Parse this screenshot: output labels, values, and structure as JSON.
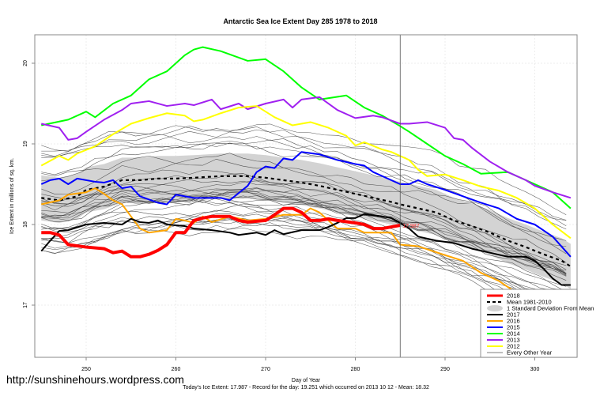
{
  "watermark": "http://sunshinehours.wordpress.com",
  "chart_data": {
    "type": "line",
    "title": "Antarctic Sea Ice Extent Day 285 1978 to 2018",
    "xlabel": "Day of Year",
    "ylabel": "Ice Extent in millions of sq. km.",
    "subtitle": "Today's Ice Extent: 17.987  - Record for the day: 19.251 which occurred on 2013 10 12  - Mean: 18.32",
    "xlim": [
      245,
      305
    ],
    "ylim": [
      16.35,
      20.35
    ],
    "x_ticks": [
      250,
      260,
      270,
      280,
      290,
      300
    ],
    "y_ticks": [
      17,
      18,
      19,
      20
    ],
    "grid": true,
    "current_day": 285,
    "current_value_label": "17.987",
    "legend_position": "bottom-right",
    "legend": [
      {
        "label": "2018",
        "color": "#ff0000",
        "style": "thick"
      },
      {
        "label": "Mean 1981-2010",
        "color": "#000000",
        "style": "dashed"
      },
      {
        "label": "1 Standard Deviation From Mean",
        "color": "#d3d3d3",
        "style": "band"
      },
      {
        "label": "2017",
        "color": "#000000",
        "style": "solid"
      },
      {
        "label": "2016",
        "color": "#ffa500",
        "style": "solid"
      },
      {
        "label": "2015",
        "color": "#0000ff",
        "style": "solid"
      },
      {
        "label": "2014",
        "color": "#00ff00",
        "style": "solid"
      },
      {
        "label": "2013",
        "color": "#a020f0",
        "style": "solid"
      },
      {
        "label": "2012",
        "color": "#ffff00",
        "style": "solid"
      },
      {
        "label": "Every Other Year",
        "color": "#555555",
        "style": "thin"
      }
    ],
    "mean": {
      "name": "Mean 1981-2010",
      "x": [
        245,
        247,
        249,
        250,
        252,
        254,
        256,
        258,
        260,
        262,
        265,
        268,
        270,
        272,
        274,
        276,
        278,
        280,
        282,
        284,
        285,
        287,
        289,
        291,
        293,
        295,
        297,
        299,
        301,
        303,
        304
      ],
      "y": [
        18.33,
        18.3,
        18.35,
        18.43,
        18.47,
        18.55,
        18.55,
        18.57,
        18.57,
        18.58,
        18.6,
        18.6,
        18.58,
        18.55,
        18.52,
        18.48,
        18.43,
        18.38,
        18.33,
        18.28,
        18.25,
        18.2,
        18.15,
        18.05,
        17.98,
        17.9,
        17.8,
        17.72,
        17.63,
        17.55,
        17.48
      ],
      "sd": 0.28
    },
    "series": [
      {
        "name": "2014",
        "color": "#00ff00",
        "x": [
          245,
          248,
          250,
          251,
          253,
          255,
          257,
          259,
          261,
          262,
          263,
          265,
          268,
          270,
          272,
          274,
          276,
          279,
          281,
          283,
          285,
          286,
          288,
          290,
          292,
          294,
          297,
          299,
          302,
          304
        ],
        "y": [
          19.23,
          19.3,
          19.4,
          19.33,
          19.5,
          19.6,
          19.8,
          19.9,
          20.1,
          20.17,
          20.2,
          20.15,
          20.03,
          20.05,
          19.9,
          19.7,
          19.55,
          19.6,
          19.45,
          19.35,
          19.22,
          19.15,
          19.0,
          18.85,
          18.75,
          18.63,
          18.65,
          18.55,
          18.4,
          18.2
        ]
      },
      {
        "name": "2013",
        "color": "#a020f0",
        "x": [
          245,
          247,
          248,
          249,
          250,
          252,
          254,
          255,
          257,
          259,
          261,
          262,
          264,
          265,
          267,
          268,
          270,
          272,
          273,
          274,
          276,
          278,
          280,
          282,
          283,
          285,
          286,
          288,
          290,
          291,
          292,
          293,
          295,
          297,
          299,
          300,
          302,
          304
        ],
        "y": [
          19.25,
          19.2,
          19.05,
          19.07,
          19.15,
          19.3,
          19.42,
          19.5,
          19.53,
          19.47,
          19.5,
          19.48,
          19.55,
          19.43,
          19.5,
          19.43,
          19.5,
          19.55,
          19.45,
          19.55,
          19.58,
          19.42,
          19.32,
          19.35,
          19.33,
          19.25,
          19.25,
          19.27,
          19.2,
          19.07,
          19.05,
          18.95,
          18.78,
          18.65,
          18.55,
          18.48,
          18.4,
          18.33
        ]
      },
      {
        "name": "2012",
        "color": "#ffff00",
        "x": [
          245,
          247,
          248,
          249,
          251,
          253,
          255,
          257,
          259,
          261,
          262,
          263,
          265,
          267,
          269,
          271,
          273,
          275,
          277,
          279,
          280,
          281,
          283,
          284,
          285,
          286,
          287,
          288,
          290,
          292,
          294,
          296,
          298,
          300,
          302,
          304
        ],
        "y": [
          18.73,
          18.85,
          18.8,
          18.88,
          18.97,
          19.12,
          19.25,
          19.32,
          19.38,
          19.35,
          19.28,
          19.3,
          19.38,
          19.45,
          19.47,
          19.33,
          19.23,
          19.27,
          19.2,
          19.1,
          18.98,
          19.02,
          18.93,
          18.9,
          18.85,
          18.8,
          18.68,
          18.6,
          18.62,
          18.55,
          18.47,
          18.42,
          18.33,
          18.2,
          18.0,
          17.83
        ]
      },
      {
        "name": "2015",
        "color": "#0000ff",
        "x": [
          245,
          246,
          247,
          248,
          249,
          251,
          252,
          253,
          254,
          255,
          256,
          258,
          259,
          260,
          262,
          264,
          265,
          266,
          268,
          269,
          270,
          271,
          272,
          273,
          274,
          276,
          278,
          280,
          281,
          282,
          284,
          285,
          286,
          287,
          288,
          290,
          292,
          294,
          296,
          298,
          300,
          302,
          304
        ],
        "y": [
          18.5,
          18.55,
          18.57,
          18.5,
          18.57,
          18.53,
          18.52,
          18.55,
          18.45,
          18.47,
          18.35,
          18.27,
          18.25,
          18.37,
          18.33,
          18.33,
          18.33,
          18.3,
          18.48,
          18.65,
          18.72,
          18.7,
          18.82,
          18.8,
          18.9,
          18.87,
          18.8,
          18.75,
          18.73,
          18.65,
          18.55,
          18.5,
          18.5,
          18.55,
          18.5,
          18.43,
          18.35,
          18.27,
          18.2,
          18.07,
          18.0,
          17.85,
          17.6
        ]
      },
      {
        "name": "2016",
        "color": "#ffa500",
        "x": [
          245,
          247,
          248,
          250,
          251,
          252,
          253,
          254,
          255,
          256,
          257,
          259,
          260,
          261,
          262,
          263,
          264,
          266,
          268,
          270,
          272,
          274,
          275,
          276,
          277,
          278,
          279,
          280,
          281,
          284,
          285,
          287,
          290,
          292,
          294,
          296,
          298,
          300,
          301,
          302,
          303,
          304
        ],
        "y": [
          18.25,
          18.3,
          18.37,
          18.4,
          18.45,
          18.38,
          18.3,
          18.25,
          18.1,
          17.95,
          17.9,
          17.93,
          18.07,
          18.05,
          18.02,
          18.1,
          18.03,
          18.1,
          18.05,
          18.07,
          18.12,
          18.12,
          18.2,
          18.15,
          18.05,
          17.95,
          17.95,
          17.95,
          17.9,
          17.9,
          17.75,
          17.73,
          17.62,
          17.55,
          17.4,
          17.3,
          17.15,
          17.0,
          16.88,
          16.8,
          16.7,
          16.58
        ]
      },
      {
        "name": "2017",
        "color": "#000000",
        "x": [
          245,
          246,
          247,
          248,
          250,
          252,
          254,
          255,
          256,
          257,
          258,
          259,
          261,
          262,
          264,
          266,
          267,
          269,
          270,
          271,
          272,
          274,
          276,
          277,
          278,
          279,
          280,
          281,
          283,
          284,
          285,
          286,
          287,
          289,
          291,
          293,
          295,
          297,
          299,
          300,
          301,
          302,
          303,
          304
        ],
        "y": [
          17.67,
          17.8,
          17.92,
          17.93,
          18.0,
          18.02,
          18.0,
          18.07,
          18.03,
          18.02,
          18.05,
          18.0,
          17.98,
          17.95,
          17.93,
          17.9,
          17.87,
          17.9,
          17.87,
          17.93,
          17.88,
          17.93,
          17.93,
          17.97,
          18.02,
          18.08,
          18.08,
          18.13,
          18.1,
          18.08,
          18.02,
          17.95,
          17.85,
          17.8,
          17.77,
          17.7,
          17.65,
          17.6,
          17.6,
          17.55,
          17.45,
          17.33,
          17.25,
          17.25
        ]
      },
      {
        "name": "2018",
        "color": "#ff0000",
        "x": [
          245,
          246,
          247,
          248,
          250,
          252,
          253,
          254,
          255,
          256,
          257,
          258,
          259,
          260,
          261,
          262,
          263,
          264,
          266,
          267,
          268,
          270,
          271,
          272,
          273,
          274,
          275,
          276,
          277,
          278,
          280,
          281,
          282,
          283,
          284,
          285
        ],
        "y": [
          17.9,
          17.9,
          17.87,
          17.75,
          17.72,
          17.7,
          17.65,
          17.67,
          17.6,
          17.6,
          17.63,
          17.68,
          17.75,
          17.9,
          17.9,
          18.05,
          18.08,
          18.1,
          18.1,
          18.05,
          18.03,
          18.05,
          18.12,
          18.2,
          18.2,
          18.15,
          18.05,
          18.05,
          18.07,
          18.05,
          18.02,
          18.0,
          17.95,
          17.95,
          17.97,
          17.99
        ]
      }
    ],
    "other_years_note": "Thin grey lines: every other year 1978-2011 (individual values not labeled)"
  }
}
